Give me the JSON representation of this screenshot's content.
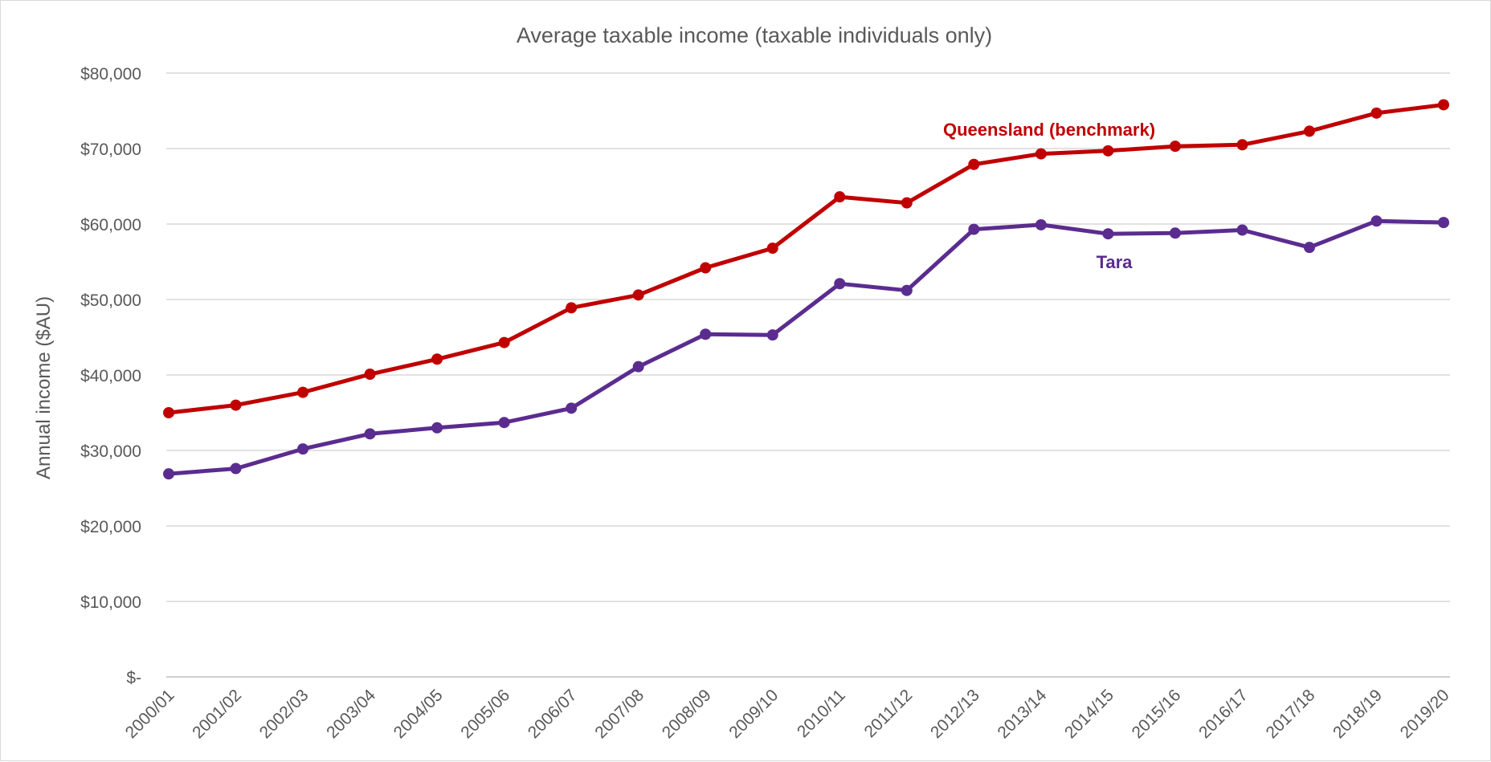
{
  "chart_data": {
    "type": "line",
    "title": "Average taxable income (taxable individuals only)",
    "xlabel": "",
    "ylabel": "Annual income ($AU)",
    "categories": [
      "2000/01",
      "2001/02",
      "2002/03",
      "2003/04",
      "2004/05",
      "2005/06",
      "2006/07",
      "2007/08",
      "2008/09",
      "2009/10",
      "2010/11",
      "2011/12",
      "2012/13",
      "2013/14",
      "2014/15",
      "2015/16",
      "2016/17",
      "2017/18",
      "2018/19",
      "2019/20"
    ],
    "ylim": [
      0,
      80000
    ],
    "y_ticks": [
      {
        "value": 0,
        "label": "$-"
      },
      {
        "value": 10000,
        "label": "$10,000"
      },
      {
        "value": 20000,
        "label": "$20,000"
      },
      {
        "value": 30000,
        "label": "$30,000"
      },
      {
        "value": 40000,
        "label": "$40,000"
      },
      {
        "value": 50000,
        "label": "$50,000"
      },
      {
        "value": 60000,
        "label": "$60,000"
      },
      {
        "value": 70000,
        "label": "$70,000"
      },
      {
        "value": 80000,
        "label": "$80,000"
      }
    ],
    "grid": true,
    "legend": "none (inline series labels)",
    "series": [
      {
        "name": "Queensland (benchmark)",
        "color": "#C00000",
        "values": [
          35000,
          36000,
          37700,
          40100,
          42100,
          44300,
          48900,
          50600,
          54200,
          56800,
          63600,
          62800,
          67900,
          69300,
          69700,
          70300,
          70500,
          72300,
          74700,
          75800
        ]
      },
      {
        "name": "Tara",
        "color": "#5B2C8F",
        "values": [
          26900,
          27600,
          30200,
          32200,
          33000,
          33700,
          35600,
          41100,
          45400,
          45300,
          52100,
          51200,
          59300,
          59900,
          58700,
          58800,
          59200,
          56900,
          60400,
          60200
        ]
      }
    ]
  }
}
